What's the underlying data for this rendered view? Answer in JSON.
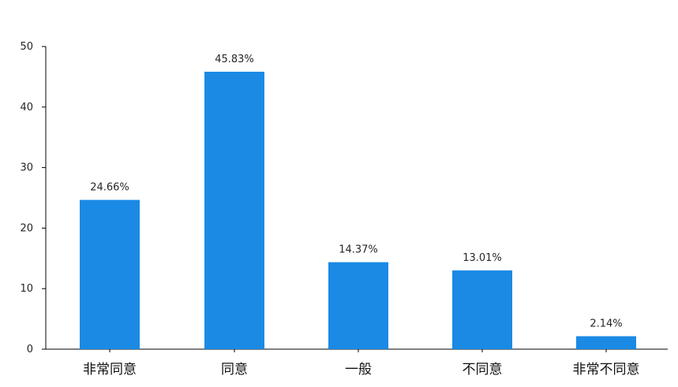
{
  "chart_data": {
    "type": "bar",
    "title": "",
    "xlabel": "",
    "ylabel": "",
    "categories": [
      "非常同意",
      "同意",
      "一般",
      "不同意",
      "非常不同意"
    ],
    "values": [
      24.66,
      45.83,
      14.37,
      13.01,
      2.14
    ],
    "data_labels": [
      "24.66%",
      "45.83%",
      "14.37%",
      "13.01%",
      "2.14%"
    ],
    "ylim": [
      0,
      50
    ],
    "yticks": [
      0,
      10,
      20,
      30,
      40,
      50
    ],
    "ytick_labels": [
      "0",
      "10",
      "20",
      "30",
      "40",
      "50"
    ],
    "grid": false,
    "legend": "none",
    "bar_color": "#1a8ae5",
    "axis_color": "#000000"
  }
}
